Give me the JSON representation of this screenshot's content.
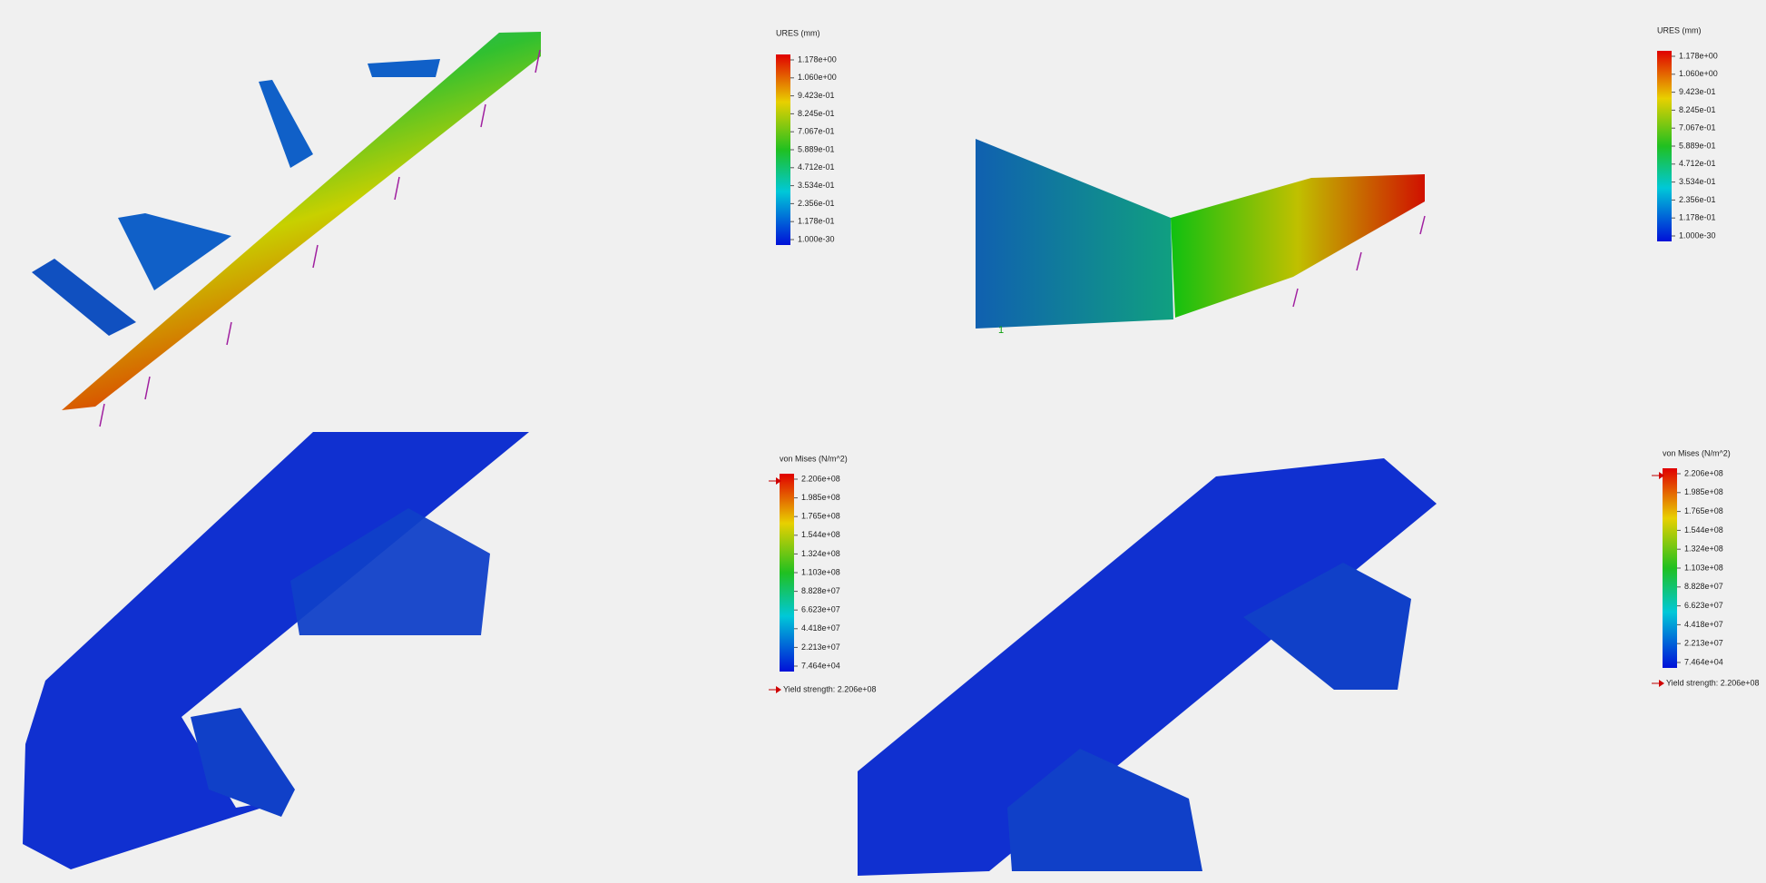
{
  "panels": [
    {
      "legend": {
        "title": "URES (mm)",
        "labels": [
          "1.178e+00",
          "1.060e+00",
          "9.423e-01",
          "8.245e-01",
          "7.067e-01",
          "5.889e-01",
          "4.712e-01",
          "3.534e-01",
          "2.356e-01",
          "1.178e-01",
          "1.000e-30"
        ]
      }
    },
    {
      "legend": {
        "title": "URES (mm)",
        "labels": [
          "1.178e+00",
          "1.060e+00",
          "9.423e-01",
          "8.245e-01",
          "7.067e-01",
          "5.889e-01",
          "4.712e-01",
          "3.534e-01",
          "2.356e-01",
          "1.178e-01",
          "1.000e-30"
        ]
      },
      "marker": "1"
    },
    {
      "legend": {
        "title": "von Mises (N/m^2)",
        "labels": [
          "2.206e+08",
          "1.985e+08",
          "1.765e+08",
          "1.544e+08",
          "1.324e+08",
          "1.103e+08",
          "8.828e+07",
          "6.623e+07",
          "4.418e+07",
          "2.213e+07",
          "7.464e+04"
        ]
      },
      "yield": "Yield strength: 2.206e+08"
    },
    {
      "legend": {
        "title": "von Mises (N/m^2)",
        "labels": [
          "2.206e+08",
          "1.985e+08",
          "1.765e+08",
          "1.544e+08",
          "1.324e+08",
          "1.103e+08",
          "8.828e+07",
          "6.623e+07",
          "4.418e+07",
          "2.213e+07",
          "7.464e+04"
        ]
      },
      "yield": "Yield strength: 2.206e+08"
    }
  ]
}
